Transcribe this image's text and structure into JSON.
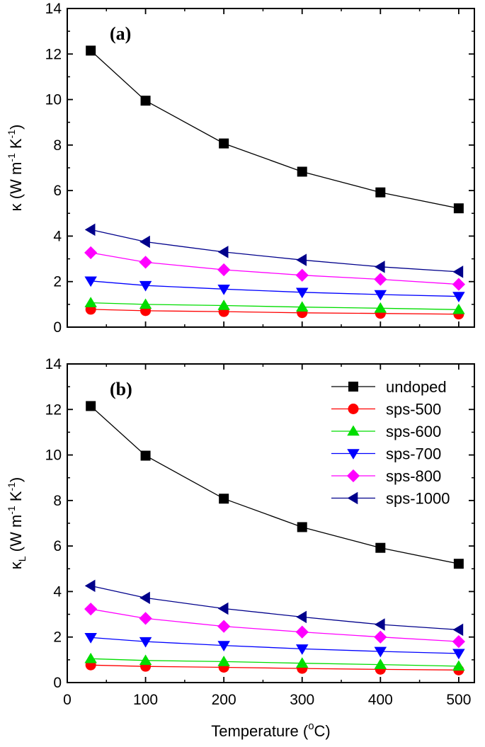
{
  "chart_data": [
    {
      "type": "line",
      "panel_label": "(a)",
      "ylabel": {
        "symbol": "κ",
        "units": "(W m",
        "exp1": "-1",
        "mid": " K",
        "exp2": "-1",
        "close": ")"
      },
      "xlim": [
        0,
        520
      ],
      "ylim": [
        0,
        14
      ],
      "x_ticks": [
        0,
        100,
        200,
        300,
        400,
        500
      ],
      "y_ticks": [
        0,
        2,
        4,
        6,
        8,
        10,
        12,
        14
      ],
      "x": [
        30,
        100,
        200,
        300,
        400,
        500
      ],
      "series": [
        {
          "name": "undoped",
          "marker": "square",
          "color": "#000000",
          "values": [
            12.15,
            9.95,
            8.07,
            6.83,
            5.92,
            5.22
          ]
        },
        {
          "name": "sps-500",
          "marker": "circle",
          "color": "#ff0000",
          "values": [
            0.78,
            0.72,
            0.68,
            0.63,
            0.6,
            0.57
          ]
        },
        {
          "name": "sps-600",
          "marker": "triangle-up",
          "color": "#00dd00",
          "values": [
            1.07,
            1.0,
            0.95,
            0.88,
            0.83,
            0.77
          ]
        },
        {
          "name": "sps-700",
          "marker": "triangle-down",
          "color": "#0000ff",
          "values": [
            2.03,
            1.83,
            1.67,
            1.53,
            1.43,
            1.35
          ]
        },
        {
          "name": "sps-800",
          "marker": "diamond",
          "color": "#ff00ff",
          "values": [
            3.27,
            2.85,
            2.52,
            2.28,
            2.1,
            1.88
          ]
        },
        {
          "name": "sps-1000",
          "marker": "triangle-left",
          "color": "#00008b",
          "values": [
            4.28,
            3.75,
            3.3,
            2.95,
            2.65,
            2.43
          ]
        }
      ]
    },
    {
      "type": "line",
      "panel_label": "(b)",
      "ylabel": {
        "symbol": "κ",
        "subscript": "L",
        "units": "(W m",
        "exp1": "-1",
        "mid": " K",
        "exp2": "-1",
        "close": ")"
      },
      "xlabel": {
        "text": "Temperature (",
        "sup": "o",
        "unit": "C)"
      },
      "xlim": [
        0,
        520
      ],
      "ylim": [
        0,
        14
      ],
      "x_ticks": [
        0,
        100,
        200,
        300,
        400,
        500
      ],
      "y_ticks": [
        0,
        2,
        4,
        6,
        8,
        10,
        12,
        14
      ],
      "legend_position": "top-right",
      "x": [
        30,
        100,
        200,
        300,
        400,
        500
      ],
      "series": [
        {
          "name": "undoped",
          "marker": "square",
          "color": "#000000",
          "values": [
            12.15,
            9.97,
            8.08,
            6.83,
            5.92,
            5.22
          ]
        },
        {
          "name": "sps-500",
          "marker": "circle",
          "color": "#ff0000",
          "values": [
            0.77,
            0.71,
            0.67,
            0.62,
            0.58,
            0.55
          ]
        },
        {
          "name": "sps-600",
          "marker": "triangle-up",
          "color": "#00dd00",
          "values": [
            1.05,
            0.97,
            0.92,
            0.85,
            0.79,
            0.72
          ]
        },
        {
          "name": "sps-700",
          "marker": "triangle-down",
          "color": "#0000ff",
          "values": [
            1.98,
            1.8,
            1.63,
            1.48,
            1.37,
            1.28
          ]
        },
        {
          "name": "sps-800",
          "marker": "diamond",
          "color": "#ff00ff",
          "values": [
            3.23,
            2.82,
            2.47,
            2.22,
            2.0,
            1.8
          ]
        },
        {
          "name": "sps-1000",
          "marker": "triangle-left",
          "color": "#00008b",
          "values": [
            4.25,
            3.72,
            3.25,
            2.88,
            2.55,
            2.32
          ]
        }
      ]
    }
  ]
}
